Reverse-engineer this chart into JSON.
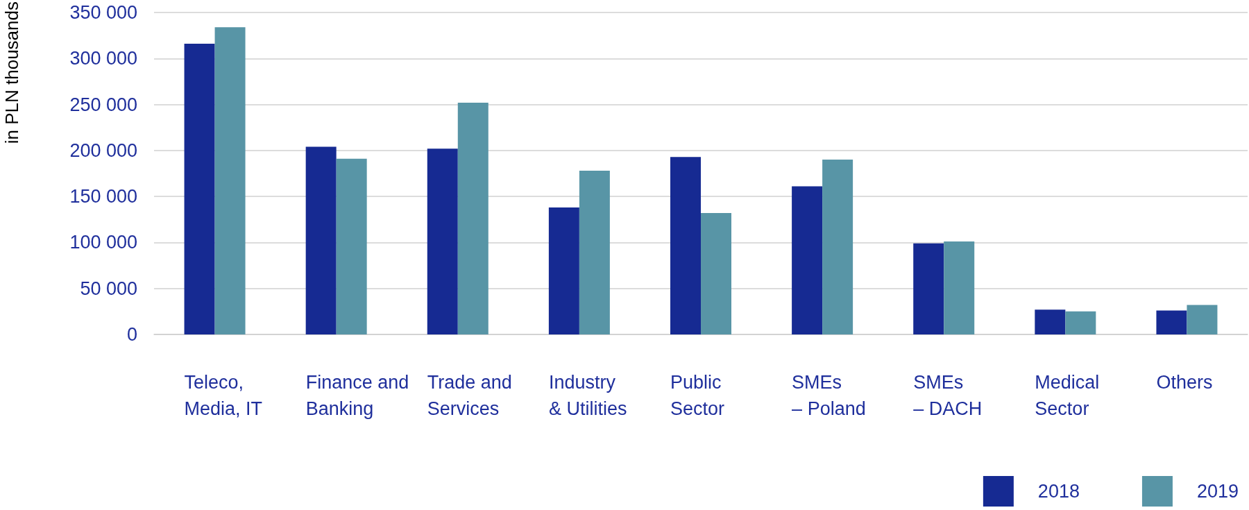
{
  "chart_data": {
    "type": "bar",
    "ylabel": "in PLN thousands",
    "categories": [
      "Teleco,\nMedia, IT",
      "Finance and\nBanking",
      "Trade and\nServices",
      "Industry\n& Utilities",
      "Public\nSector",
      "SMEs\n– Poland",
      "SMEs\n– DACH",
      "Medical\nSector",
      "Others"
    ],
    "series": [
      {
        "name": "2018",
        "color": "#162a92",
        "values": [
          316000,
          204000,
          202000,
          138000,
          193000,
          161000,
          99000,
          27000,
          26000
        ]
      },
      {
        "name": "2019",
        "color": "#5895a6",
        "values": [
          334000,
          191000,
          252000,
          178000,
          132000,
          190000,
          101000,
          25000,
          32000
        ]
      }
    ],
    "ylim": [
      0,
      350000
    ],
    "yticks": [
      {
        "value": 0,
        "label": "0"
      },
      {
        "value": 50000,
        "label": "50 000"
      },
      {
        "value": 100000,
        "label": "100 000"
      },
      {
        "value": 150000,
        "label": "150 000"
      },
      {
        "value": 200000,
        "label": "200 000"
      },
      {
        "value": 250000,
        "label": "250 000"
      },
      {
        "value": 300000,
        "label": "300 000"
      },
      {
        "value": 350000,
        "label": "350 000"
      }
    ],
    "grid": "y",
    "legend": "bottom right"
  }
}
